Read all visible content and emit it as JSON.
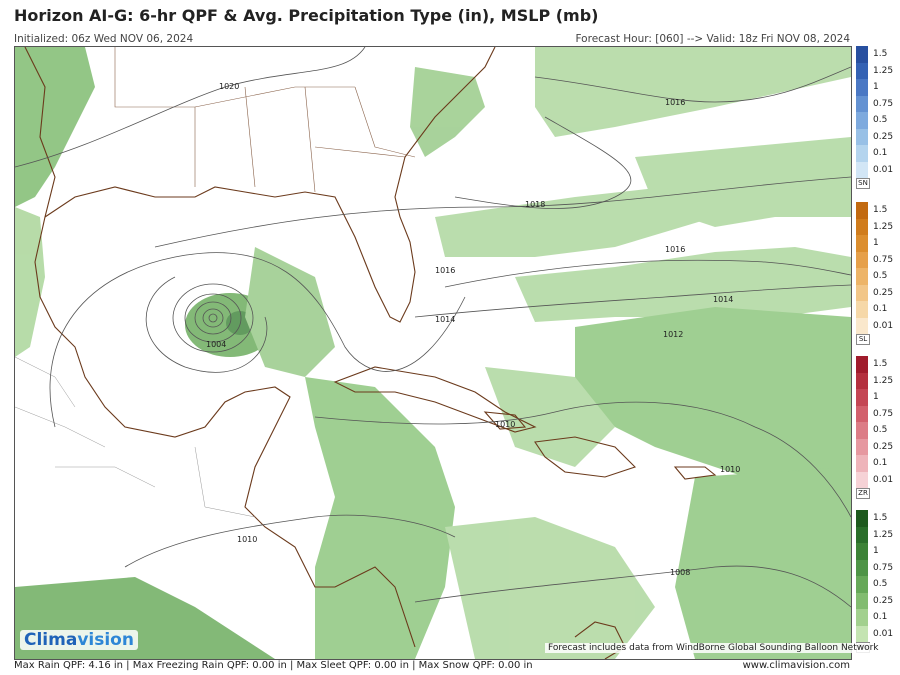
{
  "title": "Horizon AI-G: 6-hr QPF & Avg. Precipitation Type (in), MSLP (mb)",
  "initialized": "Initialized: 06z Wed NOV 06, 2024",
  "forecast_valid": "Forecast Hour: [060] --> Valid: 18z Fri NOV 08, 2024",
  "isobar_labels": [
    "1020",
    "1016",
    "1018",
    "1016",
    "1016",
    "1014",
    "1014",
    "1012",
    "1004",
    "1010",
    "1010",
    "1010",
    "1008"
  ],
  "legends": [
    {
      "code": "SN",
      "labels": [
        "1.5",
        "1.25",
        "1",
        "0.75",
        "0.5",
        "0.25",
        "0.1",
        "0.01"
      ],
      "colors": [
        "#2850a0",
        "#3462b4",
        "#4a78c4",
        "#6492d2",
        "#7eaade",
        "#98c0e6",
        "#b4d4ee",
        "#d2e6f6"
      ]
    },
    {
      "code": "SL",
      "labels": [
        "1.5",
        "1.25",
        "1",
        "0.75",
        "0.5",
        "0.25",
        "0.1",
        "0.01"
      ],
      "colors": [
        "#c26a10",
        "#d07c1c",
        "#dc8e2e",
        "#e6a04a",
        "#edb468",
        "#f2c688",
        "#f6d8a8",
        "#fae8cc"
      ]
    },
    {
      "code": "ZR",
      "labels": [
        "1.5",
        "1.25",
        "1",
        "0.75",
        "0.5",
        "0.25",
        "0.1",
        "0.01"
      ],
      "colors": [
        "#a01c2c",
        "#b4303e",
        "#c44654",
        "#d2606c",
        "#dc7c86",
        "#e698a0",
        "#eeb4ba",
        "#f6d2d6"
      ]
    },
    {
      "code": "RN",
      "labels": [
        "1.5",
        "1.25",
        "1",
        "0.75",
        "0.5",
        "0.25",
        "0.1",
        "0.01"
      ],
      "colors": [
        "#1e5a1e",
        "#2a6e2a",
        "#3c8236",
        "#4e9446",
        "#66a858",
        "#82bc70",
        "#a2d08e",
        "#c4e4b2"
      ]
    }
  ],
  "footer": {
    "max_qpf": "Max Rain QPF: 4.16 in  |  Max Freezing Rain QPF: 0.00 in  |  Max Sleet QPF: 0.00 in  |  Max Snow QPF: 0.00 in",
    "site": "www.climavision.com"
  },
  "logo": {
    "part1": "Clima",
    "part2": "vision"
  },
  "windborne_note": "Forecast includes data from WindBorne Global Sounding Balloon Network"
}
